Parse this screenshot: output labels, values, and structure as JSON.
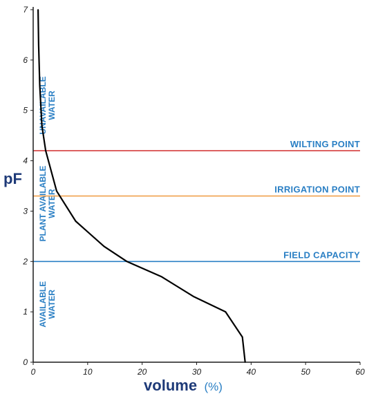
{
  "chart_data": {
    "type": "line",
    "xlabel": "volume",
    "xlabel_unit": "(%)",
    "ylabel": "pF",
    "xlim": [
      0,
      60
    ],
    "ylim": [
      0,
      7
    ],
    "x_ticks": [
      "0",
      "10",
      "20",
      "30",
      "40",
      "50",
      "60"
    ],
    "y_ticks": [
      "0",
      "1",
      "2",
      "3",
      "4",
      "5",
      "6",
      "7"
    ],
    "grid": false,
    "series": [
      {
        "color": "#000000",
        "points": [
          {
            "x": 38.9,
            "y": 0
          },
          {
            "x": 38.4,
            "y": 0.5
          },
          {
            "x": 35.3,
            "y": 1.0
          },
          {
            "x": 29.5,
            "y": 1.3
          },
          {
            "x": 23.5,
            "y": 1.7
          },
          {
            "x": 17.2,
            "y": 2.0
          },
          {
            "x": 13.0,
            "y": 2.3
          },
          {
            "x": 7.8,
            "y": 2.8
          },
          {
            "x": 4.3,
            "y": 3.4
          },
          {
            "x": 2.3,
            "y": 4.2
          },
          {
            "x": 1.6,
            "y": 4.7
          },
          {
            "x": 1.2,
            "y": 5.5
          },
          {
            "x": 1.0,
            "y": 6.3
          },
          {
            "x": 0.9,
            "y": 7.0
          }
        ]
      }
    ],
    "reference_lines": [
      {
        "label": "WILTING POINT",
        "y": 4.2,
        "line_color": "#d12b2b",
        "label_color": "#2a7fc4"
      },
      {
        "label": "IRRIGATION POINT",
        "y": 3.3,
        "line_color": "#f0a04b",
        "label_color": "#2a7fc4"
      },
      {
        "label": "FIELD CAPACITY",
        "y": 2.0,
        "line_color": "#2a7fc4",
        "label_color": "#2a7fc4"
      }
    ],
    "zones": [
      {
        "label": "UNAVAILABLE WATER",
        "y_range": [
          4.2,
          6.0
        ]
      },
      {
        "label": "PLANT AVAILABLE WATER",
        "y_range": [
          2.3,
          4.0
        ]
      },
      {
        "label": "AVAILABLE WATER",
        "y_range": [
          0.5,
          1.8
        ]
      }
    ],
    "colors": {
      "axis": "#1a1a1a",
      "curve": "#000000",
      "axis_title": "#1e3a78",
      "label_blue": "#2a7fc4"
    }
  }
}
